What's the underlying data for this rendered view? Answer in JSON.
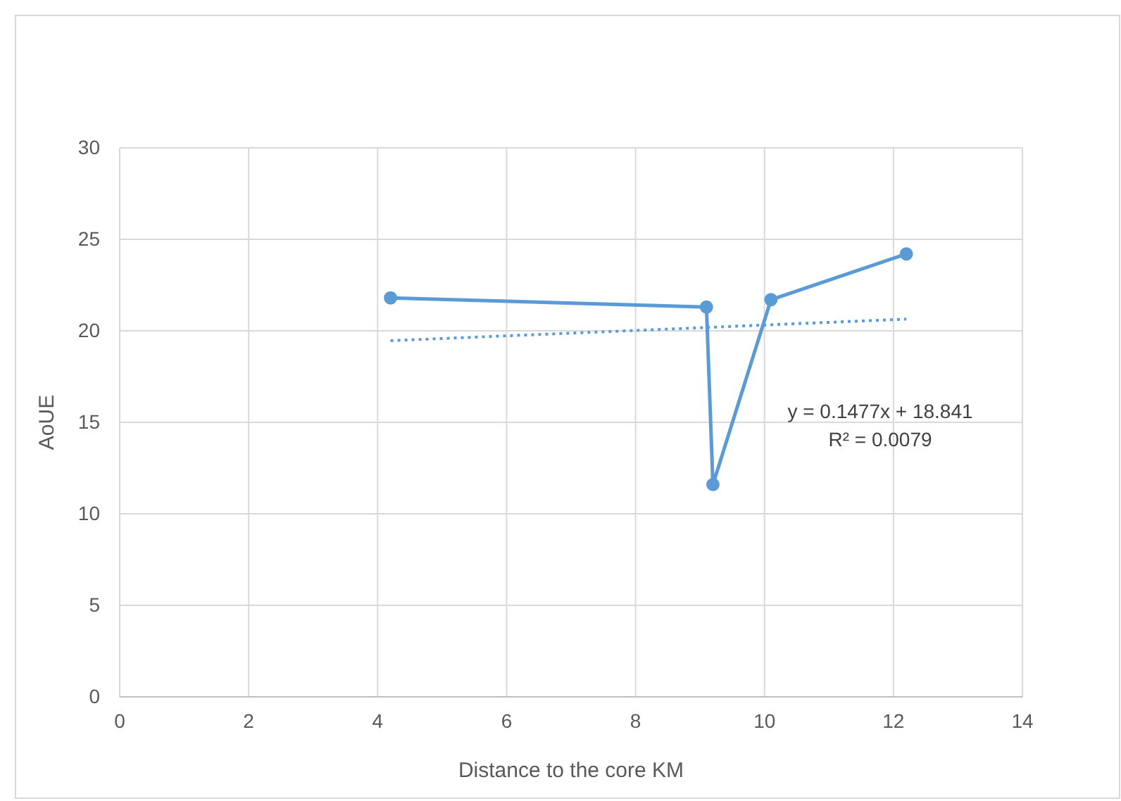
{
  "chart_data": {
    "type": "line",
    "xlabel": "Distance to the core KM",
    "ylabel": "AoUE",
    "xlim": [
      0,
      14
    ],
    "xticks": [
      0,
      2,
      4,
      6,
      8,
      10,
      12,
      14
    ],
    "ylim": [
      0,
      30
    ],
    "yticks": [
      0,
      5,
      10,
      15,
      20,
      25,
      30
    ],
    "grid": true,
    "marker": "circle",
    "series": [
      {
        "color": "#5b9bd5",
        "x": [
          4.2,
          9.1,
          9.2,
          10.1,
          12.2
        ],
        "values": [
          21.8,
          21.3,
          11.6,
          21.7,
          24.2
        ],
        "line_style": "solid"
      },
      {
        "color": "#5b9bd5",
        "x": [
          4.2,
          12.2
        ],
        "values": [
          19.46,
          20.64
        ],
        "line_style": "dotted",
        "marker": "none"
      }
    ],
    "annotations": [
      "y = 0.1477x + 18.841",
      "R² = 0.0079"
    ]
  }
}
